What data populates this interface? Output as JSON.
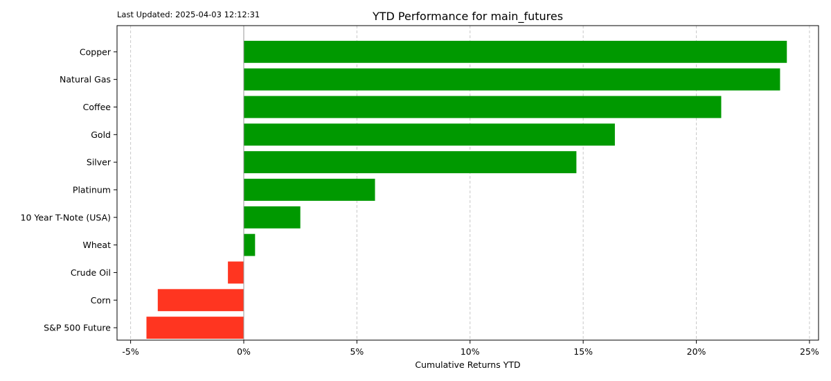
{
  "last_updated": "Last Updated: 2025-04-03 12:12:31",
  "chart_data": {
    "type": "bar",
    "orientation": "horizontal",
    "title": "YTD Performance for main_futures",
    "xlabel": "Cumulative Returns YTD",
    "ylabel": "",
    "xlim": [
      -5.6,
      25.4
    ],
    "x_ticks": [
      -5,
      0,
      5,
      10,
      15,
      20,
      25
    ],
    "x_tick_labels": [
      "-5%",
      "0%",
      "5%",
      "10%",
      "15%",
      "20%",
      "25%"
    ],
    "grid": "x dashed",
    "categories": [
      "Copper",
      "Natural Gas",
      "Coffee",
      "Gold",
      "Silver",
      "Platinum",
      "10 Year T-Note (USA)",
      "Wheat",
      "Crude Oil",
      "Corn",
      "S&P 500 Future"
    ],
    "values": [
      24.0,
      23.7,
      21.1,
      16.4,
      14.7,
      5.8,
      2.5,
      0.5,
      -0.7,
      -3.8,
      -4.3
    ],
    "colors": {
      "positive": "#009900",
      "negative": "#ff3520",
      "zero_line": "#999999",
      "grid": "#c8c8c8"
    }
  }
}
